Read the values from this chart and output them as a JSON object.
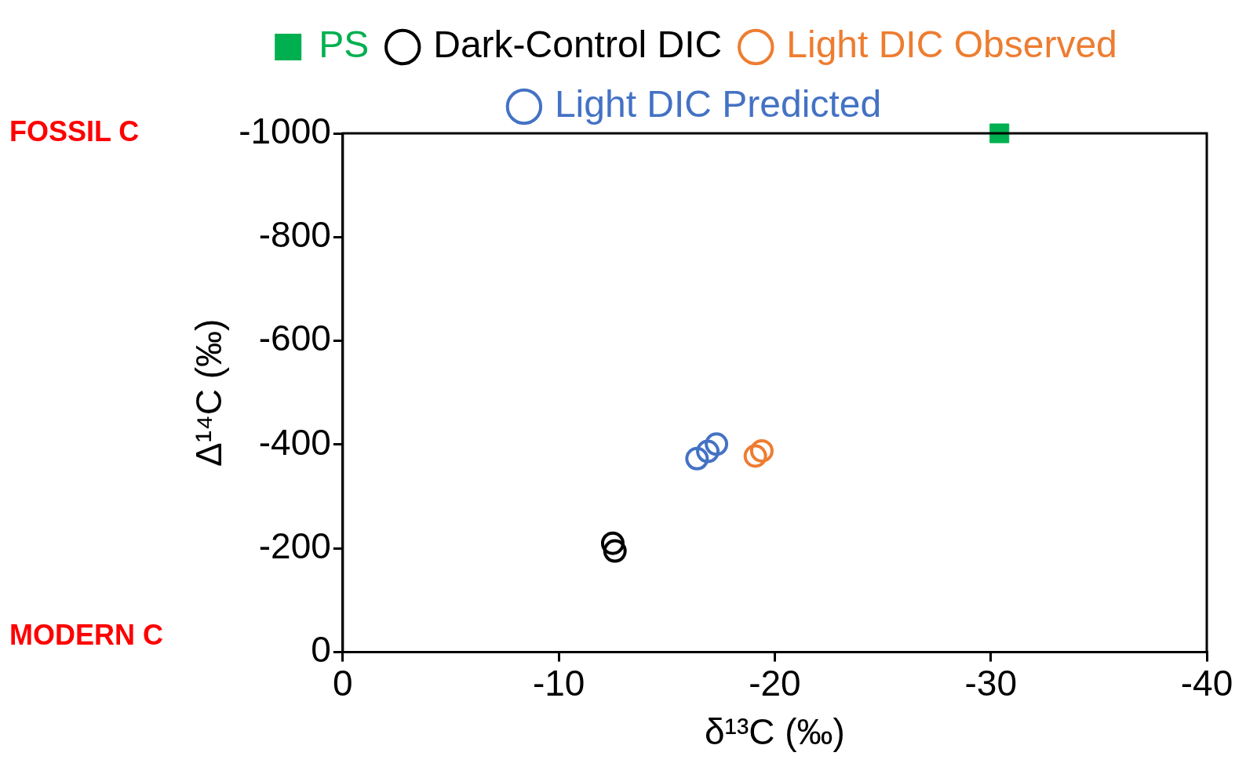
{
  "chart_data": {
    "type": "scatter",
    "xlabel": "δ¹³C (‰)",
    "ylabel": "Δ¹⁴C (‰)",
    "xlim": [
      0,
      -40
    ],
    "xticks": [
      0,
      -10,
      -20,
      -30,
      -40
    ],
    "ylim": [
      0,
      -1000
    ],
    "yticks": [
      0,
      -200,
      -400,
      -600,
      -800,
      -1000
    ],
    "grid": false,
    "legend": "top",
    "marker": "circle",
    "annotations": [
      "FOSSIL C",
      "MODERN C"
    ],
    "series": [
      {
        "name": "PS",
        "color": "#00b050",
        "marker": "square",
        "x": [
          -30.4
        ],
        "values": [
          -1000
        ]
      },
      {
        "name": "Dark-Control DIC",
        "color": "#000000",
        "x": [
          -12.5,
          -12.6
        ],
        "values": [
          -210,
          -195
        ]
      },
      {
        "name": "Light DIC Observed",
        "color": "#ed7d31",
        "x": [
          -19.1,
          -19.4
        ],
        "values": [
          -378,
          -388
        ]
      },
      {
        "name": "Light DIC Predicted",
        "color": "#4472c4",
        "x": [
          -16.4,
          -16.9,
          -17.3
        ],
        "values": [
          -373,
          -387,
          -401
        ]
      }
    ]
  }
}
